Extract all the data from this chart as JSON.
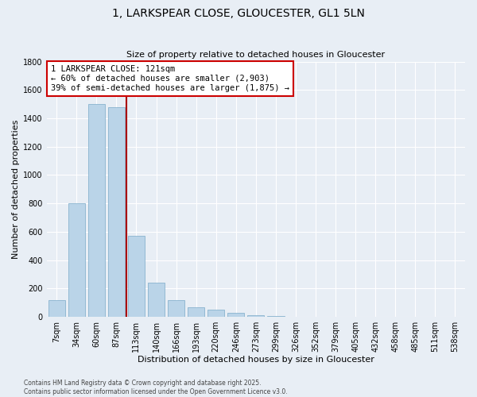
{
  "title": "1, LARKSPEAR CLOSE, GLOUCESTER, GL1 5LN",
  "subtitle": "Size of property relative to detached houses in Gloucester",
  "xlabel": "Distribution of detached houses by size in Gloucester",
  "ylabel": "Number of detached properties",
  "categories": [
    "7sqm",
    "34sqm",
    "60sqm",
    "87sqm",
    "113sqm",
    "140sqm",
    "166sqm",
    "193sqm",
    "220sqm",
    "246sqm",
    "273sqm",
    "299sqm",
    "326sqm",
    "352sqm",
    "379sqm",
    "405sqm",
    "432sqm",
    "458sqm",
    "485sqm",
    "511sqm",
    "538sqm"
  ],
  "values": [
    120,
    800,
    1500,
    1480,
    570,
    240,
    120,
    70,
    50,
    30,
    10,
    5,
    3,
    1,
    1,
    0,
    0,
    0,
    0,
    0,
    0
  ],
  "bar_color": "#bad4e8",
  "bar_edge_color": "#7aaac8",
  "property_line_color": "#aa0000",
  "property_line_x": 3.5,
  "annotation_text": "1 LARKSPEAR CLOSE: 121sqm\n← 60% of detached houses are smaller (2,903)\n39% of semi-detached houses are larger (1,875) →",
  "annotation_box_facecolor": "white",
  "annotation_box_edgecolor": "#cc0000",
  "ylim": [
    0,
    1800
  ],
  "yticks": [
    0,
    200,
    400,
    600,
    800,
    1000,
    1200,
    1400,
    1600,
    1800
  ],
  "footer_line1": "Contains HM Land Registry data © Crown copyright and database right 2025.",
  "footer_line2": "Contains public sector information licensed under the Open Government Licence v3.0.",
  "bg_color": "#e8eef5",
  "grid_color": "#ffffff",
  "title_fontsize": 10,
  "label_fontsize": 8,
  "tick_fontsize": 7,
  "annot_fontsize": 7.5,
  "footer_fontsize": 5.5
}
